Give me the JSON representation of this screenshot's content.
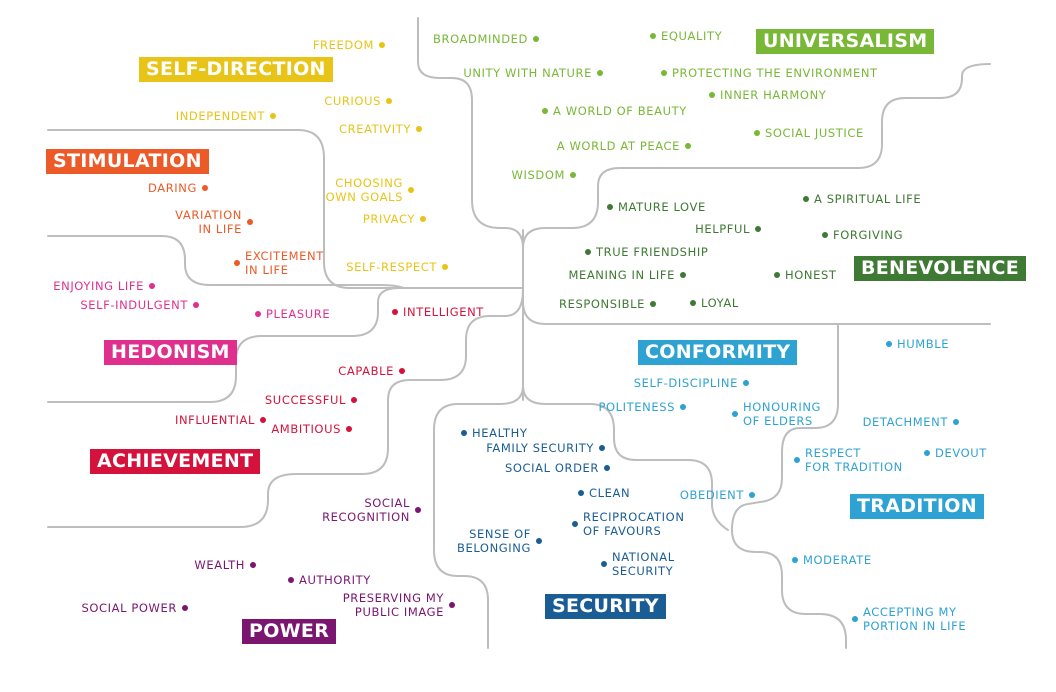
{
  "colors": {
    "self_direction": "#e8c418",
    "stimulation": "#ec5a28",
    "hedonism": "#e0308e",
    "achievement": "#d5123c",
    "power": "#7a1670",
    "security": "#1a5d95",
    "conformity": "#2ea3d3",
    "tradition": "#2ea3d3",
    "benevolence": "#3e7a33",
    "universalism": "#78b836",
    "lines": "#bdbdbd"
  },
  "categories": {
    "self_direction": "SELF-DIRECTION",
    "stimulation": "STIMULATION",
    "hedonism": "HEDONISM",
    "achievement": "ACHIEVEMENT",
    "power": "POWER",
    "security": "SECURITY",
    "conformity": "CONFORMITY",
    "tradition": "TRADITION",
    "benevolence": "BENEVOLENCE",
    "universalism": "UNIVERSALISM"
  },
  "values": {
    "self_direction": [
      "FREEDOM",
      "CURIOUS",
      "INDEPENDENT",
      "CREATIVITY",
      "CHOOSING\nOWN GOALS",
      "PRIVACY",
      "SELF-RESPECT"
    ],
    "stimulation": [
      "DARING",
      "VARIATION\nIN LIFE",
      "EXCITEMENT\nIN LIFE"
    ],
    "hedonism": [
      "ENJOYING LIFE",
      "SELF-INDULGENT",
      "PLEASURE"
    ],
    "achievement": [
      "INTELLIGENT",
      "CAPABLE",
      "SUCCESSFUL",
      "INFLUENTIAL",
      "AMBITIOUS"
    ],
    "power": [
      "SOCIAL\nRECOGNITION",
      "WEALTH",
      "AUTHORITY",
      "PRESERVING MY\nPUBLIC IMAGE",
      "SOCIAL POWER"
    ],
    "security": [
      "HEALTHY",
      "FAMILY SECURITY",
      "SOCIAL ORDER",
      "CLEAN",
      "RECIPROCATION\nOF FAVOURS",
      "SENSE OF\nBELONGING",
      "NATIONAL\nSECURITY"
    ],
    "conformity": [
      "SELF-DISCIPLINE",
      "POLITENESS",
      "HONOURING\nOF ELDERS",
      "OBEDIENT"
    ],
    "tradition": [
      "HUMBLE",
      "DETACHMENT",
      "RESPECT\nFOR TRADITION",
      "DEVOUT",
      "MODERATE",
      "ACCEPTING MY\nPORTION IN LIFE"
    ],
    "benevolence": [
      "MATURE LOVE",
      "A SPIRITUAL LIFE",
      "HELPFUL",
      "FORGIVING",
      "TRUE FRIENDSHIP",
      "MEANING IN LIFE",
      "HONEST",
      "RESPONSIBLE",
      "LOYAL"
    ],
    "universalism": [
      "BROADMINDED",
      "EQUALITY",
      "UNITY WITH NATURE",
      "PROTECTING THE ENVIRONMENT",
      "INNER HARMONY",
      "A WORLD OF BEAUTY",
      "SOCIAL JUSTICE",
      "A WORLD AT PEACE",
      "WISDOM"
    ]
  }
}
